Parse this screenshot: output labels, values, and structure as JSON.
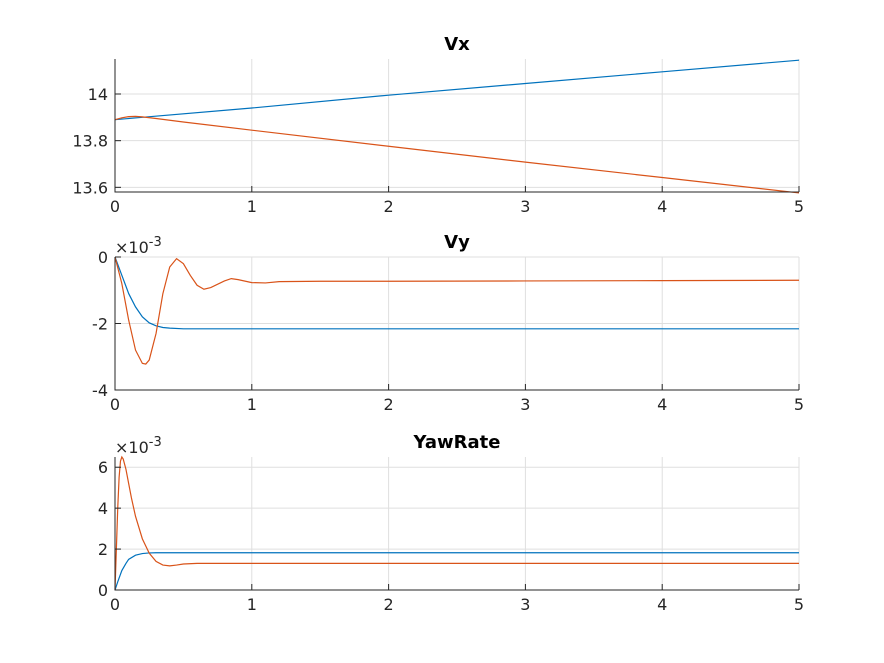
{
  "chart_data": [
    {
      "type": "line",
      "title": "Vx",
      "xlabel": "",
      "ylabel": "",
      "xlim": [
        0,
        5
      ],
      "ylim": [
        13.58,
        14.15
      ],
      "xticks": [
        "0",
        "1",
        "2",
        "3",
        "4",
        "5"
      ],
      "yticks": [
        "13.6",
        "13.8",
        "14"
      ],
      "ytick_values": [
        13.6,
        13.8,
        14.0
      ],
      "exponent": "",
      "grid": true,
      "series": [
        {
          "color": "#0072BD",
          "x": [
            0,
            0.2,
            1,
            2,
            3,
            4,
            5
          ],
          "y": [
            13.89,
            13.9,
            13.94,
            13.995,
            14.045,
            14.095,
            14.145
          ]
        },
        {
          "color": "#D95319",
          "x": [
            0,
            0.05,
            0.1,
            0.15,
            0.2,
            0.3,
            0.5,
            1,
            2,
            3,
            4,
            5
          ],
          "y": [
            13.89,
            13.898,
            13.903,
            13.904,
            13.902,
            13.895,
            13.88,
            13.845,
            13.776,
            13.708,
            13.642,
            13.576
          ]
        }
      ]
    },
    {
      "type": "line",
      "title": "Vy",
      "xlabel": "",
      "ylabel": "",
      "xlim": [
        0,
        5
      ],
      "ylim": [
        -4,
        0
      ],
      "xticks": [
        "0",
        "1",
        "2",
        "3",
        "4",
        "5"
      ],
      "yticks": [
        "0",
        "-2",
        "-4"
      ],
      "ytick_values": [
        0,
        -2,
        -4
      ],
      "exponent": "-3",
      "grid": true,
      "series": [
        {
          "color": "#0072BD",
          "x": [
            0,
            0.05,
            0.1,
            0.15,
            0.2,
            0.25,
            0.3,
            0.35,
            0.4,
            0.5,
            0.7,
            1,
            2,
            3,
            4,
            5
          ],
          "y": [
            0,
            -0.55,
            -1.1,
            -1.5,
            -1.8,
            -1.98,
            -2.07,
            -2.12,
            -2.14,
            -2.16,
            -2.16,
            -2.16,
            -2.16,
            -2.16,
            -2.16,
            -2.16
          ]
        },
        {
          "color": "#D95319",
          "x": [
            0,
            0.05,
            0.1,
            0.15,
            0.2,
            0.225,
            0.25,
            0.3,
            0.35,
            0.4,
            0.45,
            0.5,
            0.55,
            0.6,
            0.65,
            0.7,
            0.8,
            0.85,
            0.9,
            1.0,
            1.1,
            1.2,
            1.5,
            2,
            3,
            4,
            5
          ],
          "y": [
            0,
            -0.8,
            -1.9,
            -2.8,
            -3.2,
            -3.22,
            -3.1,
            -2.3,
            -1.1,
            -0.3,
            -0.05,
            -0.2,
            -0.55,
            -0.85,
            -0.97,
            -0.92,
            -0.72,
            -0.65,
            -0.68,
            -0.77,
            -0.78,
            -0.74,
            -0.73,
            -0.73,
            -0.72,
            -0.71,
            -0.7
          ]
        }
      ]
    },
    {
      "type": "line",
      "title": "YawRate",
      "xlabel": "",
      "ylabel": "",
      "xlim": [
        0,
        5
      ],
      "ylim": [
        0,
        6.5
      ],
      "xticks": [
        "0",
        "1",
        "2",
        "3",
        "4",
        "5"
      ],
      "yticks": [
        "0",
        "2",
        "4",
        "6"
      ],
      "ytick_values": [
        0,
        2,
        4,
        6
      ],
      "exponent": "-3",
      "grid": true,
      "series": [
        {
          "color": "#0072BD",
          "x": [
            0,
            0.02,
            0.05,
            0.08,
            0.1,
            0.15,
            0.2,
            0.25,
            0.3,
            0.5,
            1,
            2,
            3,
            4,
            5
          ],
          "y": [
            0,
            0.4,
            0.95,
            1.3,
            1.5,
            1.7,
            1.78,
            1.81,
            1.82,
            1.82,
            1.82,
            1.82,
            1.82,
            1.82,
            1.82
          ]
        },
        {
          "color": "#D95319",
          "x": [
            0,
            0.01,
            0.02,
            0.03,
            0.04,
            0.05,
            0.06,
            0.08,
            0.1,
            0.12,
            0.15,
            0.2,
            0.25,
            0.3,
            0.35,
            0.4,
            0.45,
            0.5,
            0.6,
            0.7,
            1,
            2,
            3,
            4,
            5
          ],
          "y": [
            0,
            2.0,
            4.0,
            5.5,
            6.3,
            6.5,
            6.4,
            5.9,
            5.2,
            4.5,
            3.6,
            2.5,
            1.8,
            1.4,
            1.22,
            1.18,
            1.22,
            1.27,
            1.3,
            1.3,
            1.3,
            1.3,
            1.3,
            1.3,
            1.3
          ]
        }
      ]
    }
  ]
}
